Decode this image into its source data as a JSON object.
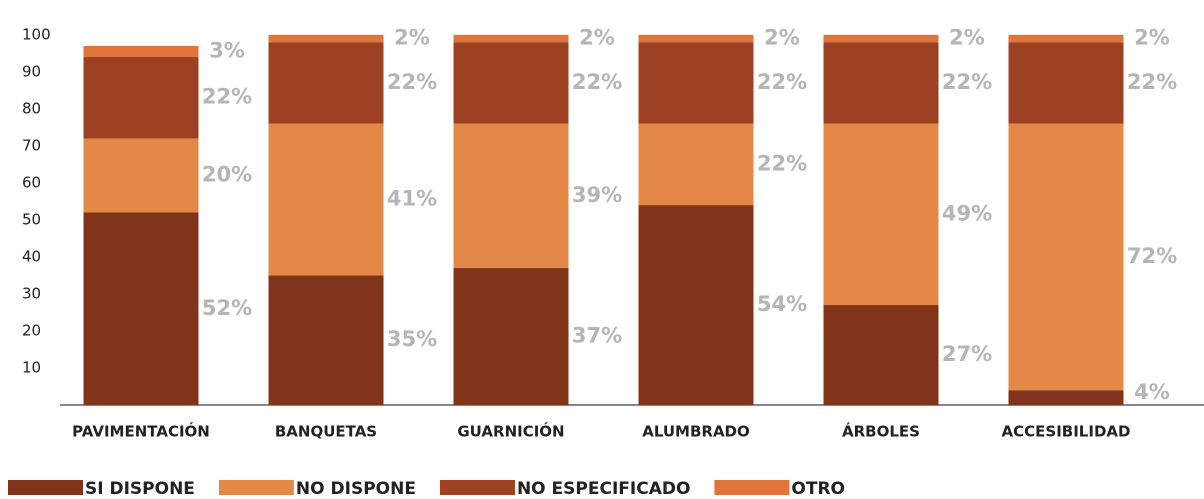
{
  "chart_data": {
    "type": "stacked_bar",
    "categories": [
      "PAVIMENTACIÓN",
      "BANQUETAS",
      "GUARNICIÓN",
      "ALUMBRADO",
      "ÁRBOLES",
      "ACCESIBILIDAD"
    ],
    "series": [
      {
        "name": "SI DISPONE",
        "color": "#82341a",
        "values": [
          52,
          35,
          37,
          54,
          27,
          4
        ],
        "value_labels": [
          "52%",
          "35%",
          "37%",
          "54%",
          "27%",
          "4%"
        ]
      },
      {
        "name": "NO DISPONE",
        "color": "#e48848",
        "values": [
          20,
          41,
          39,
          22,
          49,
          72
        ],
        "value_labels": [
          "20%",
          "41%",
          "39%",
          "22%",
          "49%",
          "72%"
        ]
      },
      {
        "name": "NO ESPECIFICADO",
        "color": "#9e4122",
        "values": [
          22,
          22,
          22,
          22,
          22,
          22
        ],
        "value_labels": [
          "22%",
          "22%",
          "22%",
          "22%",
          "22%",
          "22%"
        ]
      },
      {
        "name": "OTRO",
        "color": "#e0743a",
        "values": [
          3,
          2,
          2,
          2,
          2,
          2
        ],
        "value_labels": [
          "3%",
          "2%",
          "2%",
          "2%",
          "2%",
          "2%"
        ]
      }
    ],
    "ylim": [
      0,
      104
    ],
    "yticks": [
      10,
      20,
      30,
      40,
      50,
      60,
      70,
      80,
      90,
      100
    ],
    "grid": false,
    "legend": "bottom"
  }
}
